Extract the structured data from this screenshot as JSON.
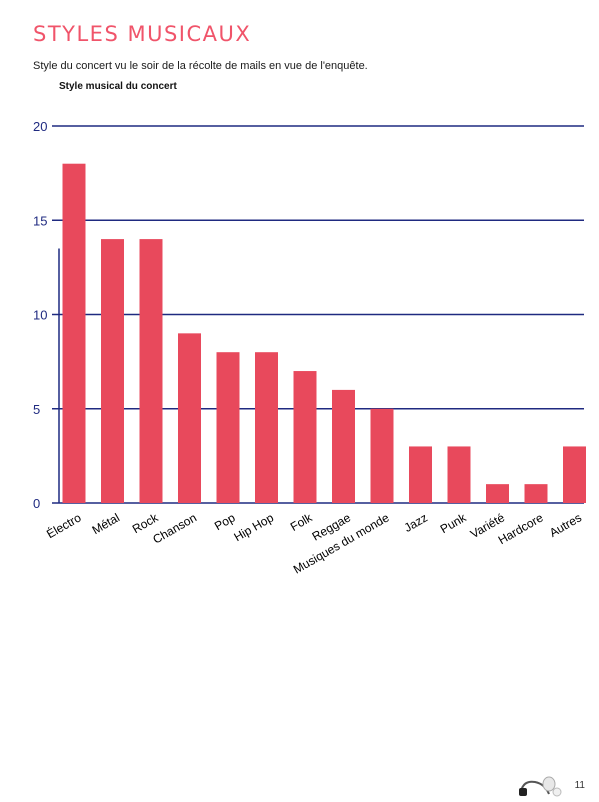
{
  "page": {
    "title": "STYLES MUSICAUX",
    "subtitle": "Style du concert vu le soir de la récolte de mails en vue de l'enquête.",
    "page_number": "11",
    "logo_icon": "headphones-logo-icon"
  },
  "colors": {
    "title": "#f0546a",
    "bar": "#e8495c",
    "grid": "#1f2a80",
    "axis_text": "#1f2a80"
  },
  "chart_data": {
    "type": "bar",
    "title": "Style musical du concert",
    "xlabel": "",
    "ylabel": "",
    "categories": [
      "Électro",
      "Métal",
      "Rock",
      "Chanson",
      "Pop",
      "Hip Hop",
      "Folk",
      "Reggae",
      "Musiques du monde",
      "Jazz",
      "Punk",
      "Variété",
      "Hardcore",
      "Autres"
    ],
    "values": [
      18,
      14,
      14,
      9,
      8,
      8,
      7,
      6,
      5,
      3,
      3,
      1,
      1,
      3
    ],
    "ylim": [
      0,
      20
    ],
    "yticks": [
      0,
      5,
      10,
      15,
      20
    ],
    "grid": true,
    "legend": "none"
  }
}
